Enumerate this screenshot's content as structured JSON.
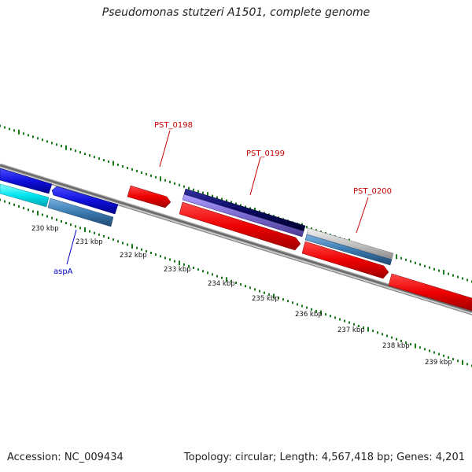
{
  "title": "Pseudomonas stutzeri A1501, complete genome",
  "footer": {
    "accession": "Accession: NC_009434",
    "summary": "Topology: circular; Length: 4,567,418 bp; Genes: 4,201"
  },
  "ticks": [
    "230 kbp",
    "231 kbp",
    "232 kbp",
    "233 kbp",
    "234 kbp",
    "235 kbp",
    "236 kbp",
    "237 kbp",
    "238 kbp",
    "239 kbp"
  ],
  "gene_labels": [
    {
      "text": "PST_0198",
      "color": "#cc0000"
    },
    {
      "text": "PST_0199",
      "color": "#cc0000"
    },
    {
      "text": "PST_0200",
      "color": "#cc0000"
    },
    {
      "text": "aspA",
      "color": "#0000cc"
    }
  ],
  "colors": {
    "backbone": "#7a7a7a",
    "tick_marks": "#1a7a1a",
    "forward_gene": "#ee0000",
    "blue_gene": "#1010dd",
    "cyan_gene": "#00e5ee",
    "steel_gene": "#3a7ab0",
    "navy_gene": "#0a0a60",
    "purple_gene": "#7a6ad0",
    "gray_gene": "#bbbbbb"
  }
}
